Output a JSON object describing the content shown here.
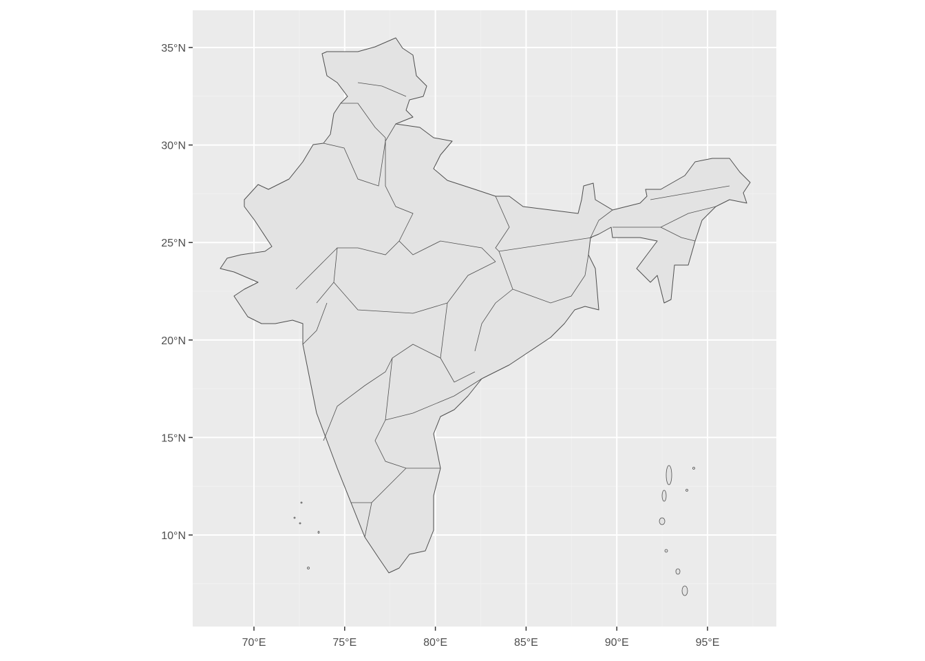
{
  "chart_data": {
    "type": "map",
    "title": "",
    "xlabel": "",
    "ylabel": "",
    "x_ticks": [
      {
        "value": 70,
        "label": "70°E"
      },
      {
        "value": 75,
        "label": "75°E"
      },
      {
        "value": 80,
        "label": "80°E"
      },
      {
        "value": 85,
        "label": "85°E"
      },
      {
        "value": 90,
        "label": "90°E"
      },
      {
        "value": 95,
        "label": "95°E"
      }
    ],
    "y_ticks": [
      {
        "value": 35,
        "label": "35°N"
      },
      {
        "value": 30,
        "label": "30°N"
      },
      {
        "value": 25,
        "label": "25°N"
      },
      {
        "value": 20,
        "label": "20°N"
      },
      {
        "value": 15,
        "label": "15°N"
      },
      {
        "value": 10,
        "label": "10°N"
      }
    ],
    "xlim": [
      66.6,
      98.8
    ],
    "ylim": [
      5.7,
      37.3
    ],
    "region": "India states",
    "grid": true,
    "colors": {
      "panel": "#ebebeb",
      "grid": "#ffffff",
      "fill": "#e3e3e3",
      "border": "#4d4d4d"
    }
  }
}
